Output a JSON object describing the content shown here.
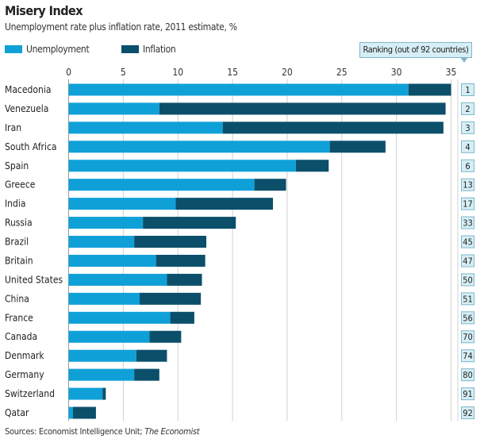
{
  "chart_data": {
    "type": "bar",
    "orientation": "horizontal",
    "stacked": true,
    "title": "Misery Index",
    "subtitle": "Unemployment rate plus inflation rate, 2011 estimate, %",
    "categories": [
      "Macedonia",
      "Venezuela",
      "Iran",
      "South Africa",
      "Spain",
      "Greece",
      "India",
      "Russia",
      "Brazil",
      "Britain",
      "United States",
      "China",
      "France",
      "Canada",
      "Denmark",
      "Germany",
      "Switzerland",
      "Qatar"
    ],
    "series": [
      {
        "name": "Unemployment",
        "color": "#0fa0d8",
        "values": [
          31.1,
          8.3,
          14.1,
          23.9,
          20.8,
          17.0,
          9.8,
          6.8,
          6.0,
          8.0,
          9.0,
          6.5,
          9.3,
          7.4,
          6.2,
          6.0,
          3.1,
          0.4
        ]
      },
      {
        "name": "Inflation",
        "color": "#0b4f6b",
        "values": [
          3.9,
          26.2,
          20.2,
          5.1,
          3.0,
          2.9,
          8.9,
          8.5,
          6.6,
          4.5,
          3.2,
          5.6,
          2.2,
          2.9,
          2.8,
          2.3,
          0.3,
          2.1
        ]
      }
    ],
    "ranking_header": "Ranking (out of 92 countries)",
    "rankings": [
      "1",
      "2",
      "3",
      "4",
      "6",
      "13",
      "17",
      "33",
      "45",
      "47",
      "50",
      "51",
      "56",
      "70",
      "74",
      "80",
      "91",
      "92"
    ],
    "xlim": [
      0,
      35
    ],
    "xticks": [
      "0",
      "5",
      "10",
      "15",
      "20",
      "25",
      "30",
      "35"
    ],
    "grid": true,
    "legend_position": "top-left",
    "source_prefix": "Sources: Economist Intelligence Unit; ",
    "source_italic": "The Economist"
  }
}
